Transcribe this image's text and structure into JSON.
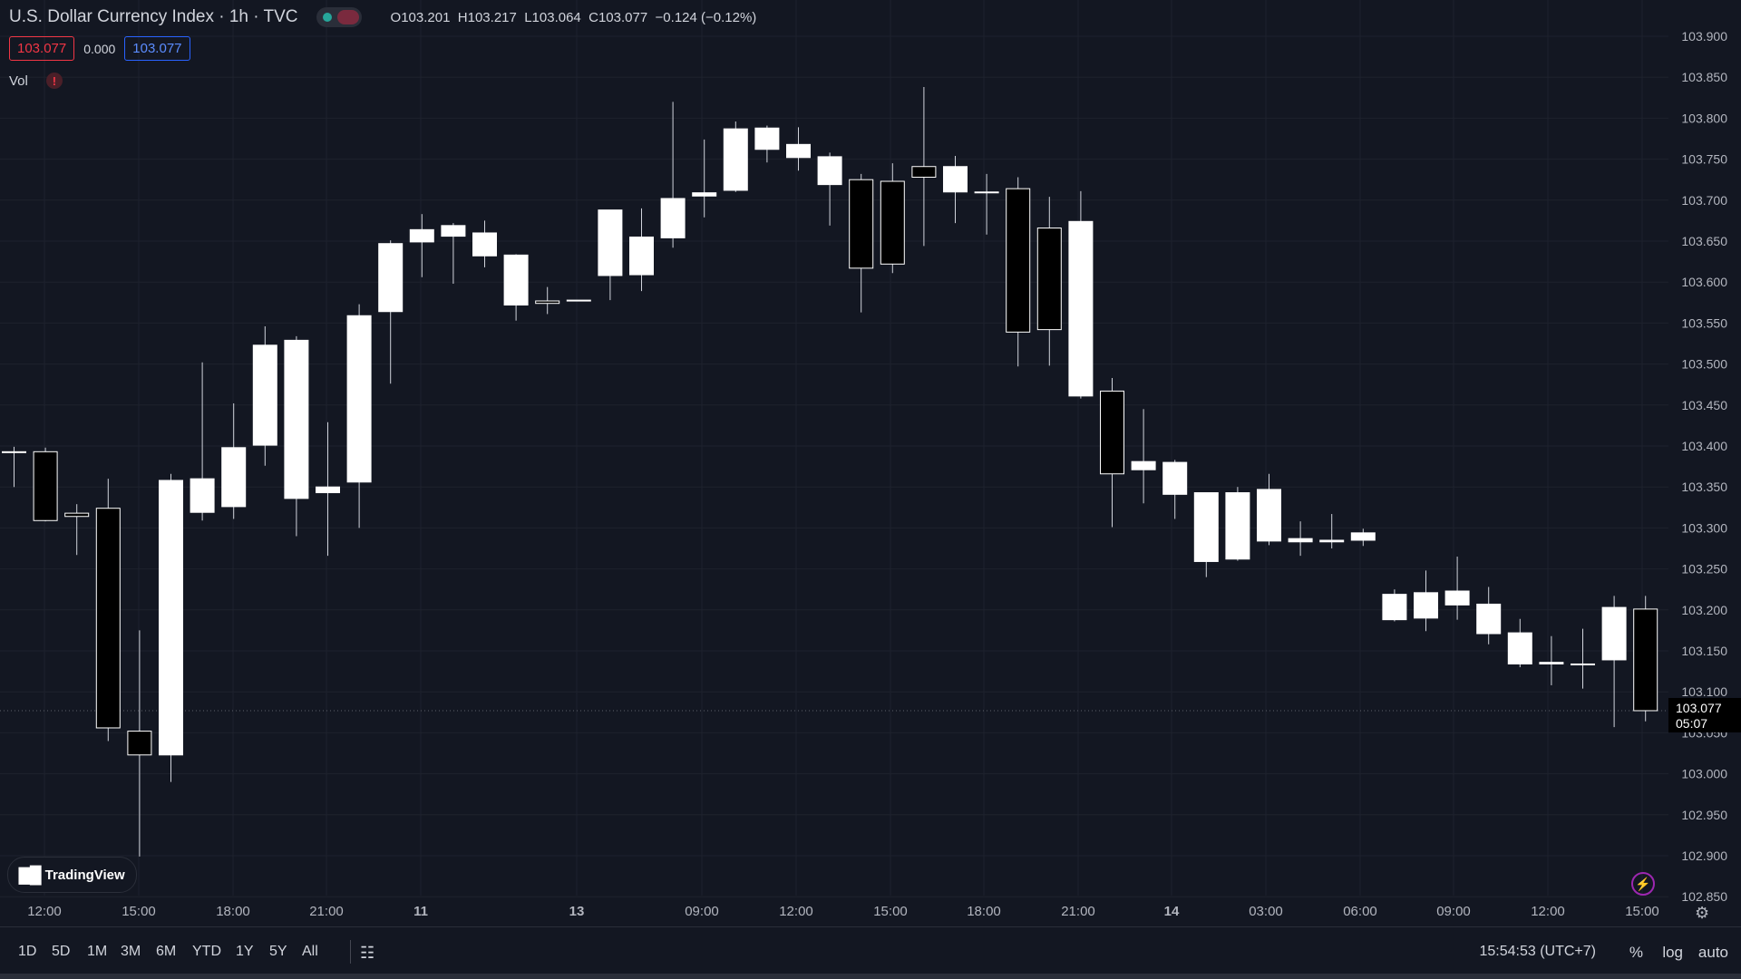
{
  "header": {
    "title": "U.S. Dollar Currency Index · 1h · TVC",
    "ohlc": {
      "o_label": "O",
      "o": "103.201",
      "h_label": "H",
      "h": "103.217",
      "l_label": "L",
      "l": "103.064",
      "c_label": "C",
      "c": "103.077",
      "change": "−0.124 (−0.12%)"
    },
    "sell_price": "103.077",
    "spread": "0.000",
    "buy_price": "103.077",
    "volume_label": "Vol",
    "warning_icon": "!"
  },
  "price_axis": {
    "ticks": [
      "103.900",
      "103.850",
      "103.800",
      "103.750",
      "103.700",
      "103.650",
      "103.600",
      "103.550",
      "103.500",
      "103.450",
      "103.400",
      "103.350",
      "103.300",
      "103.250",
      "103.200",
      "103.150",
      "103.100",
      "103.050",
      "103.000",
      "102.950",
      "102.900",
      "102.850"
    ],
    "last_price": "103.077",
    "countdown": "05:07"
  },
  "time_axis": {
    "labels": [
      "12:00",
      "15:00",
      "18:00",
      "21:00",
      "11",
      "13",
      "09:00",
      "12:00",
      "15:00",
      "18:00",
      "21:00",
      "14",
      "03:00",
      "06:00",
      "09:00",
      "12:00",
      "15:00"
    ]
  },
  "bottom_bar": {
    "timeframes": [
      "1D",
      "5D",
      "1M",
      "3M",
      "6M",
      "YTD",
      "1Y",
      "5Y",
      "All"
    ],
    "clock": "15:54:53 (UTC+7)",
    "percent": "%",
    "log": "log",
    "auto": "auto"
  },
  "branding": {
    "logo_text": "TradingView"
  },
  "colors": {
    "background": "#131722",
    "up": "#ffffff",
    "down": "#000000",
    "wick": "#d1d4dc",
    "grid": "#1e222d",
    "sell": "#f23645",
    "buy": "#2962ff"
  },
  "chart_data": {
    "type": "candlestick",
    "title": "U.S. Dollar Currency Index · 1h · TVC",
    "ylim": [
      102.85,
      103.92
    ],
    "grid": true,
    "candles": [
      {
        "o": 103.393,
        "h": 103.399,
        "l": 103.35,
        "c": 103.393
      },
      {
        "o": 103.393,
        "h": 103.398,
        "l": 103.308,
        "c": 103.309
      },
      {
        "o": 103.318,
        "h": 103.329,
        "l": 103.267,
        "c": 103.314
      },
      {
        "o": 103.324,
        "h": 103.36,
        "l": 103.04,
        "c": 103.056
      },
      {
        "o": 103.052,
        "h": 103.175,
        "l": 102.899,
        "c": 103.023
      },
      {
        "o": 103.023,
        "h": 103.366,
        "l": 102.99,
        "c": 103.358
      },
      {
        "o": 103.319,
        "h": 103.502,
        "l": 103.309,
        "c": 103.36
      },
      {
        "o": 103.326,
        "h": 103.452,
        "l": 103.311,
        "c": 103.398
      },
      {
        "o": 103.401,
        "h": 103.546,
        "l": 103.376,
        "c": 103.523
      },
      {
        "o": 103.336,
        "h": 103.534,
        "l": 103.29,
        "c": 103.529
      },
      {
        "o": 103.343,
        "h": 103.429,
        "l": 103.266,
        "c": 103.35
      },
      {
        "o": 103.356,
        "h": 103.573,
        "l": 103.3,
        "c": 103.559
      },
      {
        "o": 103.564,
        "h": 103.651,
        "l": 103.476,
        "c": 103.647
      },
      {
        "o": 103.649,
        "h": 103.683,
        "l": 103.606,
        "c": 103.664
      },
      {
        "o": 103.656,
        "h": 103.672,
        "l": 103.598,
        "c": 103.669
      },
      {
        "o": 103.632,
        "h": 103.675,
        "l": 103.618,
        "c": 103.66
      },
      {
        "o": 103.572,
        "h": 103.634,
        "l": 103.553,
        "c": 103.633
      },
      {
        "o": 103.577,
        "h": 103.594,
        "l": 103.561,
        "c": 103.574
      },
      {
        "o": 103.578,
        "h": 103.578,
        "l": 103.578,
        "c": 103.578
      },
      {
        "o": 103.608,
        "h": 103.682,
        "l": 103.578,
        "c": 103.688
      },
      {
        "o": 103.609,
        "h": 103.69,
        "l": 103.589,
        "c": 103.655
      },
      {
        "o": 103.654,
        "h": 103.82,
        "l": 103.642,
        "c": 103.702
      },
      {
        "o": 103.705,
        "h": 103.774,
        "l": 103.679,
        "c": 103.709
      },
      {
        "o": 103.712,
        "h": 103.796,
        "l": 103.71,
        "c": 103.787
      },
      {
        "o": 103.762,
        "h": 103.791,
        "l": 103.746,
        "c": 103.788
      },
      {
        "o": 103.752,
        "h": 103.789,
        "l": 103.736,
        "c": 103.768
      },
      {
        "o": 103.719,
        "h": 103.758,
        "l": 103.669,
        "c": 103.753
      },
      {
        "o": 103.725,
        "h": 103.732,
        "l": 103.563,
        "c": 103.617
      },
      {
        "o": 103.723,
        "h": 103.745,
        "l": 103.611,
        "c": 103.622
      },
      {
        "o": 103.741,
        "h": 103.838,
        "l": 103.644,
        "c": 103.728
      },
      {
        "o": 103.71,
        "h": 103.754,
        "l": 103.672,
        "c": 103.741
      },
      {
        "o": 103.71,
        "h": 103.732,
        "l": 103.658,
        "c": 103.71
      },
      {
        "o": 103.714,
        "h": 103.728,
        "l": 103.497,
        "c": 103.539
      },
      {
        "o": 103.666,
        "h": 103.704,
        "l": 103.498,
        "c": 103.542
      },
      {
        "o": 103.461,
        "h": 103.711,
        "l": 103.458,
        "c": 103.674
      },
      {
        "o": 103.467,
        "h": 103.483,
        "l": 103.301,
        "c": 103.366
      },
      {
        "o": 103.371,
        "h": 103.445,
        "l": 103.33,
        "c": 103.381
      },
      {
        "o": 103.341,
        "h": 103.383,
        "l": 103.311,
        "c": 103.38
      },
      {
        "o": 103.259,
        "h": 103.341,
        "l": 103.24,
        "c": 103.343
      },
      {
        "o": 103.262,
        "h": 103.35,
        "l": 103.26,
        "c": 103.343
      },
      {
        "o": 103.284,
        "h": 103.366,
        "l": 103.279,
        "c": 103.347
      },
      {
        "o": 103.283,
        "h": 103.308,
        "l": 103.266,
        "c": 103.287
      },
      {
        "o": 103.283,
        "h": 103.317,
        "l": 103.275,
        "c": 103.285
      },
      {
        "o": 103.285,
        "h": 103.299,
        "l": 103.278,
        "c": 103.294
      },
      {
        "o": 103.188,
        "h": 103.225,
        "l": 103.186,
        "c": 103.219
      },
      {
        "o": 103.19,
        "h": 103.248,
        "l": 103.174,
        "c": 103.221
      },
      {
        "o": 103.206,
        "h": 103.265,
        "l": 103.188,
        "c": 103.223
      },
      {
        "o": 103.171,
        "h": 103.228,
        "l": 103.158,
        "c": 103.207
      },
      {
        "o": 103.134,
        "h": 103.189,
        "l": 103.13,
        "c": 103.172
      },
      {
        "o": 103.134,
        "h": 103.168,
        "l": 103.108,
        "c": 103.136
      },
      {
        "o": 103.134,
        "h": 103.177,
        "l": 103.104,
        "c": 103.134
      },
      {
        "o": 103.139,
        "h": 103.217,
        "l": 103.057,
        "c": 103.203
      },
      {
        "o": 103.201,
        "h": 103.217,
        "l": 103.064,
        "c": 103.077
      }
    ]
  }
}
